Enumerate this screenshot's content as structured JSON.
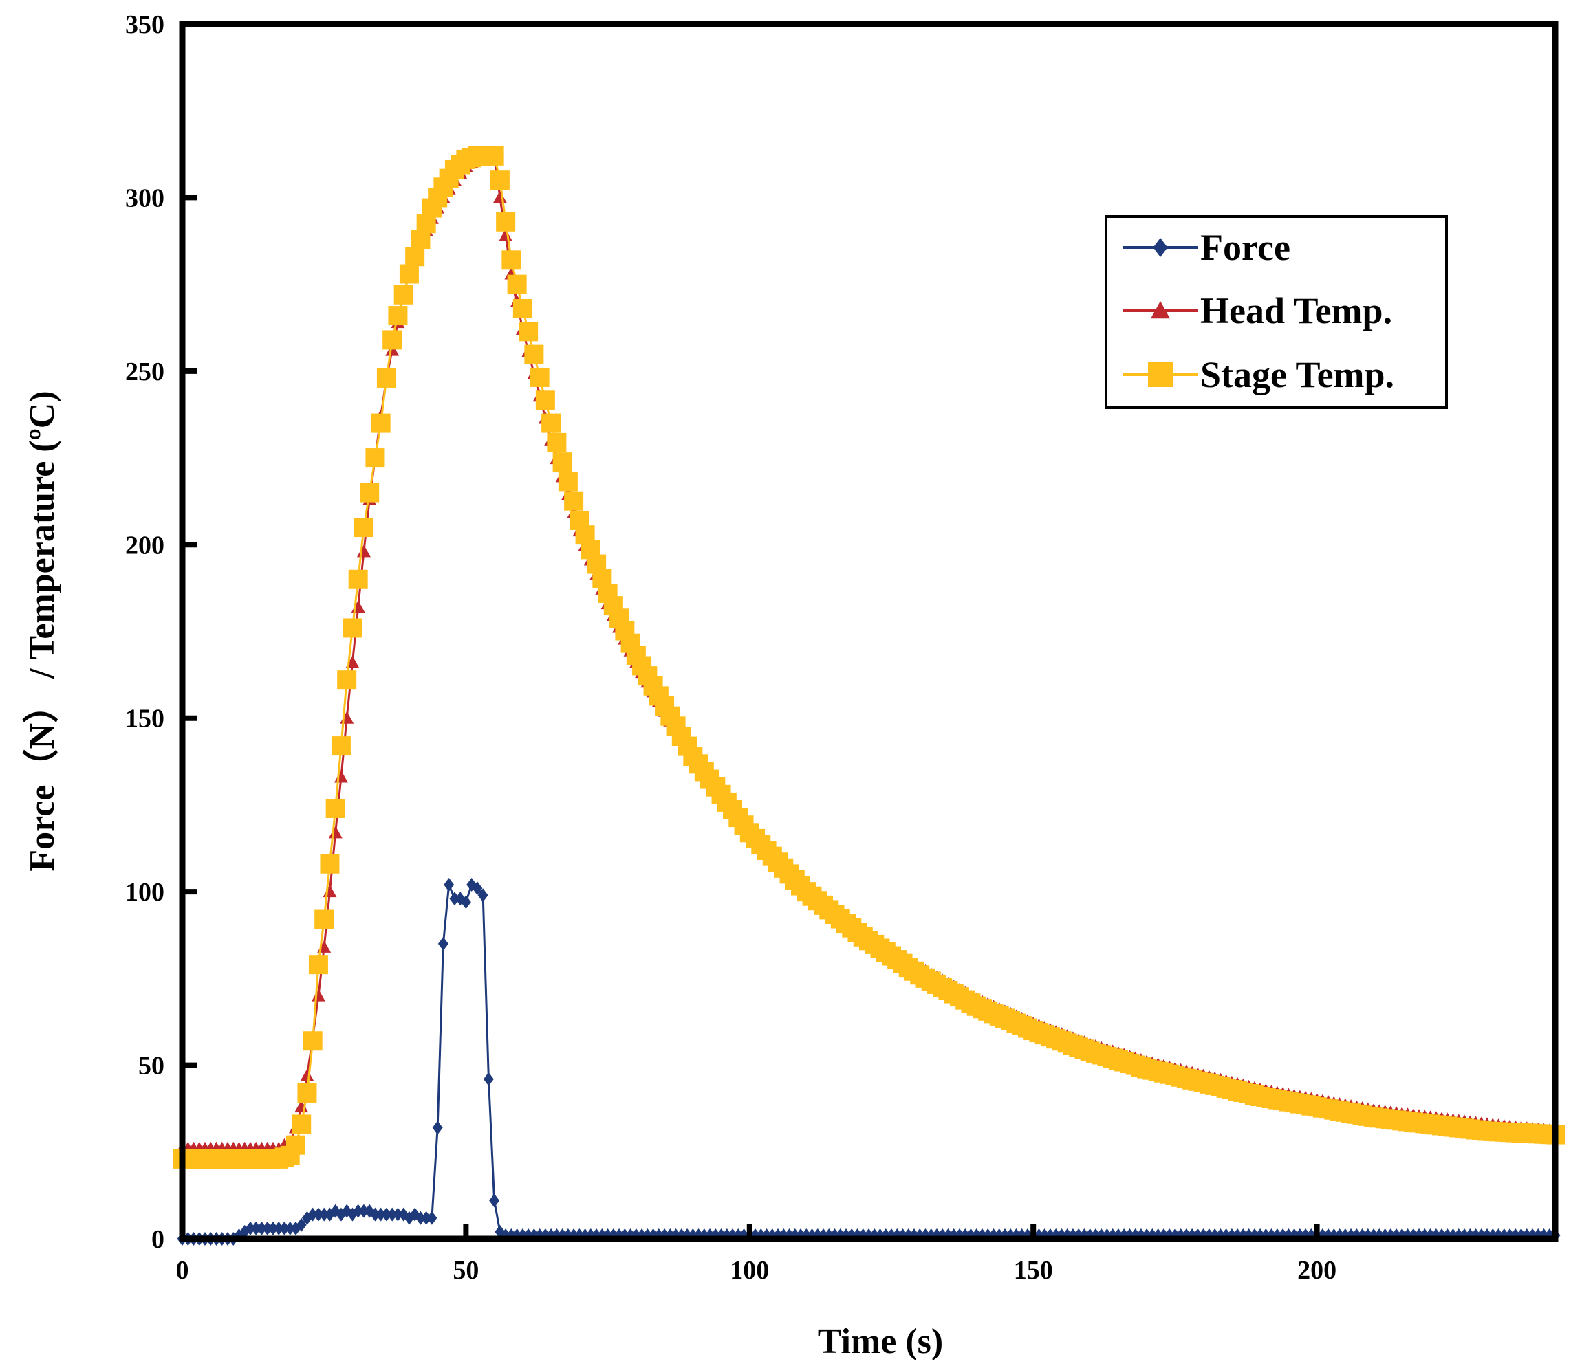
{
  "chart_data": {
    "type": "line",
    "xlabel": "Time (s)",
    "ylabel": "Force（N） / Temperature (ºC)",
    "xlim": [
      0,
      242
    ],
    "ylim": [
      0,
      350
    ],
    "x_ticks": [
      "0",
      "50",
      "100",
      "150",
      "200"
    ],
    "y_ticks": [
      "0",
      "50",
      "100",
      "150",
      "200",
      "250",
      "300",
      "350"
    ],
    "grid": false,
    "legend_position": "top-right",
    "series": [
      {
        "name": "Force",
        "color": "#1f3a7a",
        "marker": "diamond",
        "x": [
          0,
          9,
          10,
          11,
          12,
          13,
          14,
          15,
          16,
          17,
          18,
          19,
          20,
          21,
          22,
          23,
          24,
          25,
          26,
          27,
          28,
          29,
          30,
          31,
          32,
          33,
          34,
          35,
          36,
          37,
          38,
          39,
          40,
          41,
          42,
          43,
          44,
          45,
          46,
          47,
          48,
          49,
          50,
          51,
          52,
          53,
          54,
          55,
          56,
          57,
          60,
          80,
          100,
          120,
          140,
          160,
          180,
          200,
          220,
          242
        ],
        "y": [
          0,
          0,
          1,
          2,
          3,
          3,
          3,
          3,
          3,
          3,
          3,
          3,
          3,
          4,
          6,
          7,
          7,
          7,
          7,
          8,
          7,
          8,
          7,
          8,
          8,
          8,
          7,
          7,
          7,
          7,
          7,
          7,
          6,
          7,
          6,
          6,
          6,
          32,
          85,
          102,
          98,
          98,
          97,
          102,
          101,
          99,
          46,
          11,
          2,
          1,
          1,
          1,
          1,
          1,
          1,
          1,
          1,
          1,
          1,
          1
        ]
      },
      {
        "name": "Head Temp.",
        "color": "#c0282d",
        "marker": "triangle",
        "x": [
          0,
          5,
          10,
          15,
          17,
          19,
          20,
          21,
          22,
          23,
          24,
          25,
          26,
          27,
          28,
          29,
          30,
          31,
          32,
          33,
          34,
          35,
          36,
          37,
          38,
          39,
          40,
          42,
          44,
          46,
          48,
          50,
          52,
          54,
          55,
          56,
          58,
          60,
          65,
          70,
          75,
          80,
          90,
          100,
          110,
          120,
          130,
          140,
          150,
          160,
          170,
          180,
          190,
          200,
          210,
          220,
          230,
          242
        ],
        "y": [
          26,
          26,
          26,
          26,
          26,
          28,
          32,
          38,
          47,
          58,
          70,
          84,
          100,
          117,
          133,
          150,
          166,
          182,
          198,
          213,
          225,
          237,
          248,
          256,
          264,
          272,
          278,
          287,
          294,
          300,
          305,
          309,
          311,
          312,
          312,
          300,
          278,
          262,
          230,
          204,
          183,
          166,
          138,
          117,
          101,
          88,
          78,
          69,
          62,
          56,
          51,
          47,
          43,
          40,
          37,
          35,
          33,
          31
        ]
      },
      {
        "name": "Stage Temp.",
        "color": "#ffbe1a",
        "marker": "square",
        "x": [
          0,
          5,
          10,
          15,
          17,
          19,
          20,
          21,
          22,
          23,
          24,
          25,
          26,
          27,
          28,
          29,
          30,
          31,
          32,
          33,
          34,
          35,
          36,
          37,
          38,
          39,
          40,
          42,
          44,
          46,
          48,
          50,
          52,
          54,
          55,
          56,
          57,
          58,
          60,
          65,
          70,
          75,
          80,
          90,
          100,
          110,
          120,
          130,
          140,
          150,
          160,
          170,
          180,
          190,
          200,
          210,
          220,
          230,
          242
        ],
        "y": [
          23,
          23,
          23,
          23,
          23,
          24,
          27,
          33,
          42,
          57,
          79,
          92,
          108,
          124,
          142,
          161,
          176,
          190,
          205,
          215,
          225,
          235,
          248,
          259,
          266,
          272,
          278,
          288,
          297,
          303,
          308,
          311,
          312,
          312,
          312,
          305,
          293,
          282,
          268,
          235,
          207,
          186,
          168,
          139,
          117,
          100,
          87,
          76,
          67,
          60,
          54,
          49,
          45,
          41,
          38,
          35,
          33,
          31,
          30
        ]
      }
    ]
  }
}
